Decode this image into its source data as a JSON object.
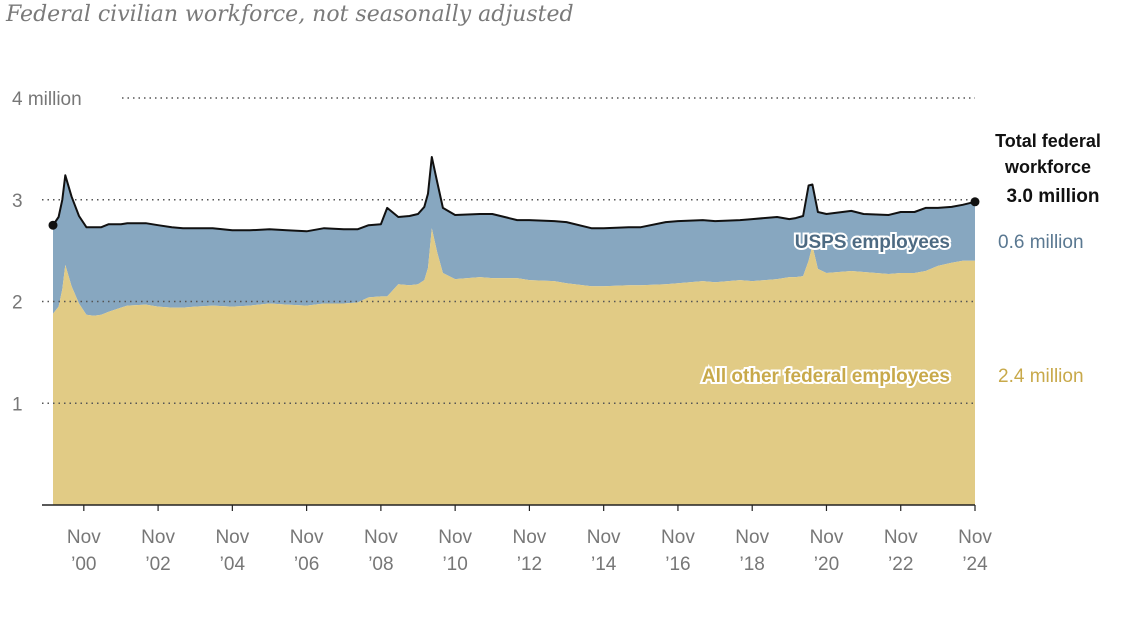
{
  "subtitle": "Federal civilian workforce, not seasonally adjusted",
  "colors": {
    "usps": "#87a7c0",
    "other": "#e1cb85",
    "total_line": "#111111",
    "usps_label": "#5a7891",
    "other_label": "#c8a94a"
  },
  "chart_data": {
    "type": "area",
    "stacked": true,
    "y_unit": "million employees",
    "ylim": [
      0,
      4
    ],
    "y_ticks": [
      {
        "value": 4,
        "label": "4 million"
      },
      {
        "value": 3,
        "label": "3"
      },
      {
        "value": 2,
        "label": "2"
      },
      {
        "value": 1,
        "label": "1"
      }
    ],
    "grid": "horizontal dotted",
    "x_ticks": [
      {
        "value": 2000.83,
        "month": "Nov",
        "year": "’00"
      },
      {
        "value": 2002.83,
        "month": "Nov",
        "year": "’02"
      },
      {
        "value": 2004.83,
        "month": "Nov",
        "year": "’04"
      },
      {
        "value": 2006.83,
        "month": "Nov",
        "year": "’06"
      },
      {
        "value": 2008.83,
        "month": "Nov",
        "year": "’08"
      },
      {
        "value": 2010.83,
        "month": "Nov",
        "year": "’10"
      },
      {
        "value": 2012.83,
        "month": "Nov",
        "year": "’12"
      },
      {
        "value": 2014.83,
        "month": "Nov",
        "year": "’14"
      },
      {
        "value": 2016.83,
        "month": "Nov",
        "year": "’16"
      },
      {
        "value": 2018.83,
        "month": "Nov",
        "year": "’18"
      },
      {
        "value": 2020.83,
        "month": "Nov",
        "year": "’20"
      },
      {
        "value": 2022.83,
        "month": "Nov",
        "year": "’22"
      },
      {
        "value": 2024.83,
        "month": "Nov",
        "year": "’24"
      }
    ],
    "xlim": [
      2000.0,
      2024.83
    ],
    "x": [
      2000.0,
      2000.15,
      2000.25,
      2000.33,
      2000.5,
      2000.7,
      2000.9,
      2001.1,
      2001.3,
      2001.5,
      2001.83,
      2002.0,
      2002.5,
      2002.83,
      2003.2,
      2003.5,
      2003.83,
      2004.3,
      2004.83,
      2005.3,
      2005.83,
      2006.3,
      2006.83,
      2007.3,
      2007.83,
      2008.2,
      2008.5,
      2008.83,
      2009.0,
      2009.3,
      2009.6,
      2009.83,
      2010.0,
      2010.1,
      2010.2,
      2010.35,
      2010.5,
      2010.83,
      2011.5,
      2011.83,
      2012.5,
      2012.83,
      2013.5,
      2013.83,
      2014.5,
      2014.83,
      2015.5,
      2015.83,
      2016.5,
      2016.83,
      2017.5,
      2017.83,
      2018.5,
      2018.83,
      2019.5,
      2019.83,
      2020.0,
      2020.2,
      2020.35,
      2020.45,
      2020.6,
      2020.83,
      2021.5,
      2021.83,
      2022.5,
      2022.83,
      2023.2,
      2023.5,
      2023.83,
      2024.2,
      2024.5,
      2024.83
    ],
    "series": [
      {
        "name": "All other federal employees",
        "label_value": "2.4 million",
        "values": [
          1.88,
          1.95,
          2.12,
          2.36,
          2.15,
          1.98,
          1.87,
          1.86,
          1.87,
          1.9,
          1.94,
          1.96,
          1.97,
          1.95,
          1.94,
          1.94,
          1.95,
          1.96,
          1.95,
          1.96,
          1.98,
          1.97,
          1.96,
          1.98,
          1.98,
          1.99,
          2.04,
          2.05,
          2.05,
          2.17,
          2.16,
          2.17,
          2.21,
          2.33,
          2.72,
          2.48,
          2.28,
          2.22,
          2.24,
          2.23,
          2.23,
          2.21,
          2.2,
          2.18,
          2.15,
          2.15,
          2.16,
          2.16,
          2.17,
          2.18,
          2.2,
          2.19,
          2.21,
          2.2,
          2.22,
          2.24,
          2.24,
          2.25,
          2.4,
          2.55,
          2.32,
          2.28,
          2.3,
          2.29,
          2.27,
          2.28,
          2.28,
          2.3,
          2.35,
          2.38,
          2.4,
          2.4
        ]
      },
      {
        "name": "USPS employees",
        "label_value": "0.6 million",
        "values": [
          0.87,
          0.88,
          0.88,
          0.88,
          0.88,
          0.86,
          0.86,
          0.87,
          0.86,
          0.86,
          0.82,
          0.81,
          0.8,
          0.8,
          0.79,
          0.78,
          0.77,
          0.76,
          0.75,
          0.74,
          0.73,
          0.73,
          0.73,
          0.74,
          0.73,
          0.72,
          0.71,
          0.71,
          0.87,
          0.66,
          0.68,
          0.69,
          0.72,
          0.73,
          0.7,
          0.69,
          0.64,
          0.63,
          0.62,
          0.63,
          0.57,
          0.59,
          0.59,
          0.6,
          0.57,
          0.57,
          0.57,
          0.57,
          0.61,
          0.61,
          0.6,
          0.6,
          0.59,
          0.61,
          0.61,
          0.57,
          0.58,
          0.59,
          0.74,
          0.6,
          0.56,
          0.58,
          0.59,
          0.57,
          0.58,
          0.6,
          0.6,
          0.62,
          0.57,
          0.55,
          0.55,
          0.58
        ]
      }
    ],
    "total_label": {
      "line1": "Total federal",
      "line2": "workforce",
      "value": "3.0 million"
    }
  }
}
